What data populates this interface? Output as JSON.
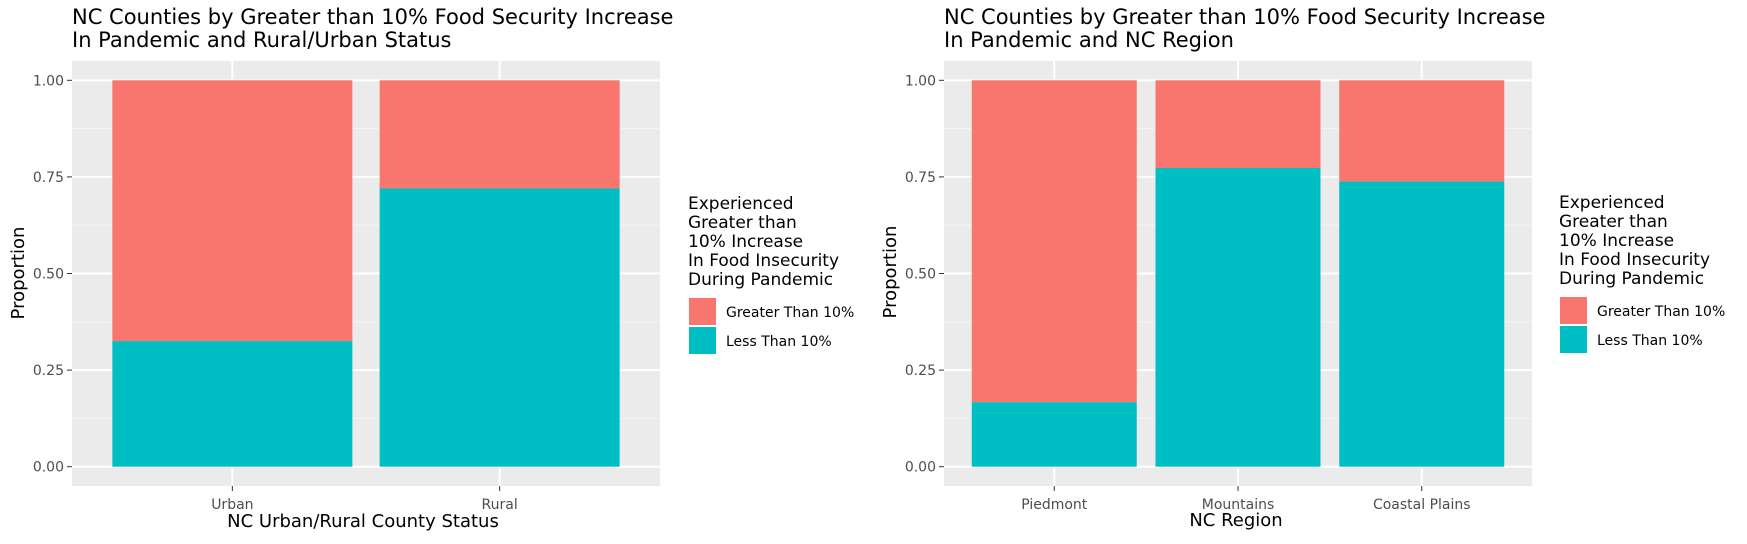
{
  "legend": {
    "title_lines": [
      "Experienced",
      "Greater than",
      "10% Increase",
      "In Food Insecurity",
      "During Pandemic"
    ],
    "items": [
      "Greater Than 10%",
      "Less Than 10%"
    ]
  },
  "colors": {
    "greater": "#F8766D",
    "less": "#00BFC4",
    "panel": "#EBEBEB",
    "grid_major": "#FFFFFF",
    "grid_minor": "#F5F5F5"
  },
  "chart_data": [
    {
      "type": "bar",
      "stacked": true,
      "title_lines": [
        "NC Counties by Greater than 10% Food Security Increase",
        "In Pandemic and Rural/Urban Status"
      ],
      "xlabel": "NC Urban/Rural County Status",
      "ylabel": "Proportion",
      "categories": [
        "Urban",
        "Rural"
      ],
      "series": [
        {
          "name": "Greater Than 10%",
          "values": [
            0.675,
            0.28
          ]
        },
        {
          "name": "Less Than 10%",
          "values": [
            0.325,
            0.72
          ]
        }
      ],
      "ylim": [
        0,
        1
      ],
      "yticks": [
        "0.00",
        "0.25",
        "0.50",
        "0.75",
        "1.00"
      ],
      "legend_position": "right",
      "grid": true
    },
    {
      "type": "bar",
      "stacked": true,
      "title_lines": [
        "NC Counties by Greater than 10% Food Security Increase",
        "In Pandemic and NC Region"
      ],
      "xlabel": "NC Region",
      "ylabel": "Proportion",
      "categories": [
        "Piedmont",
        "Mountains",
        "Coastal Plains"
      ],
      "series": [
        {
          "name": "Greater Than 10%",
          "values": [
            0.833,
            0.227,
            0.262
          ]
        },
        {
          "name": "Less Than 10%",
          "values": [
            0.167,
            0.773,
            0.738
          ]
        }
      ],
      "ylim": [
        0,
        1
      ],
      "yticks": [
        "0.00",
        "0.25",
        "0.50",
        "0.75",
        "1.00"
      ],
      "legend_position": "right",
      "grid": true
    }
  ]
}
